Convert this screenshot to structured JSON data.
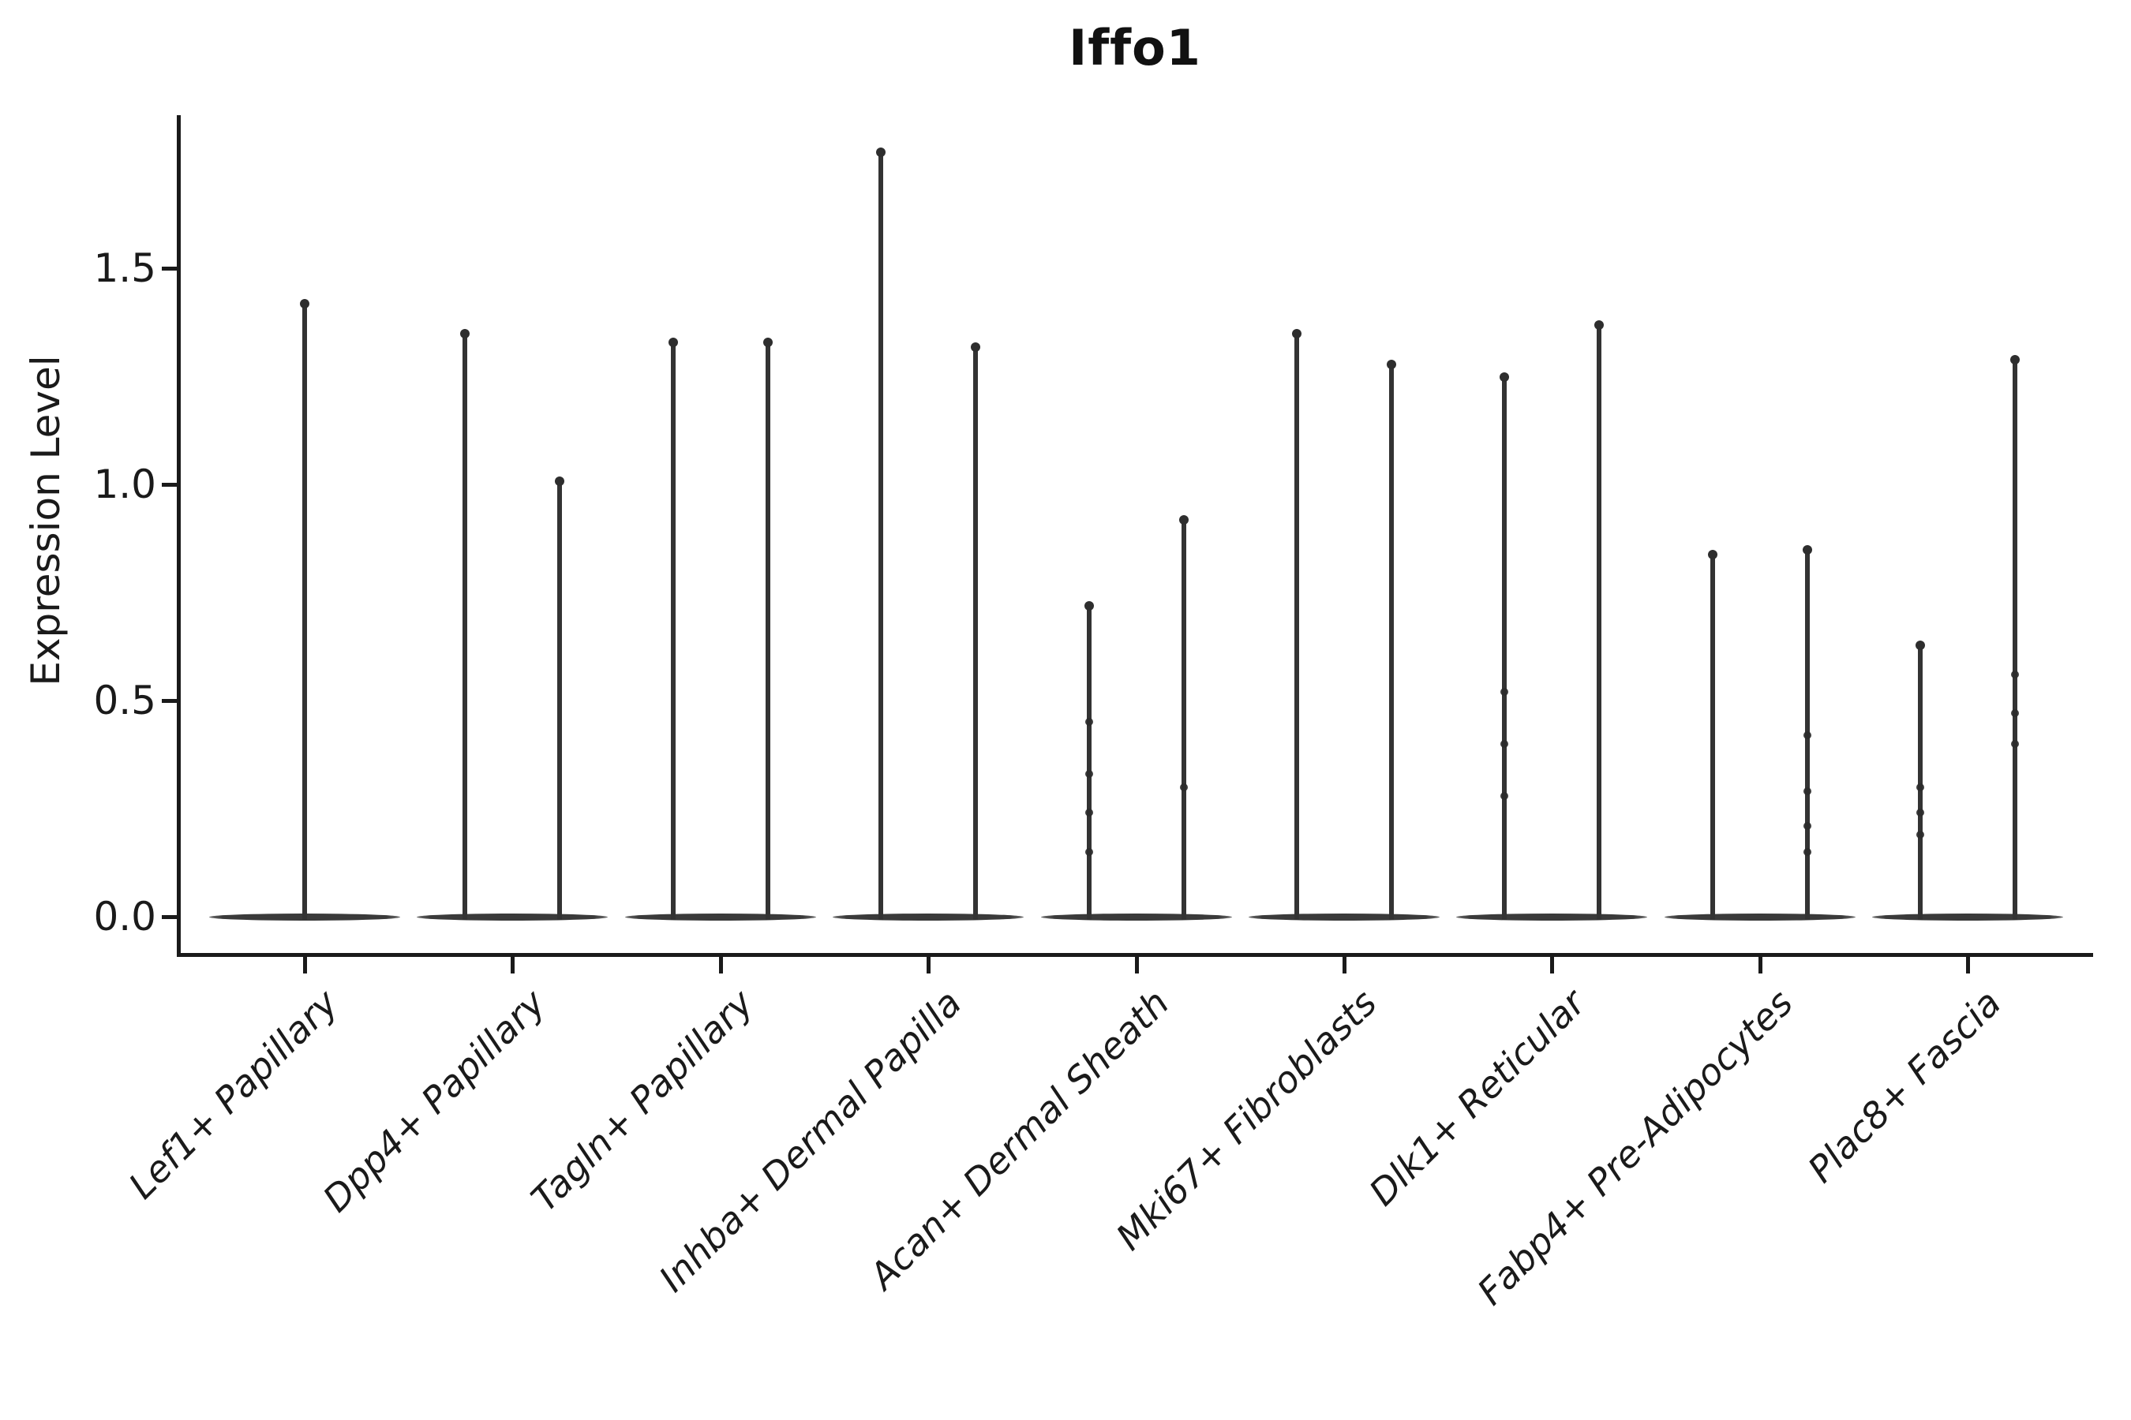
{
  "chart_data": {
    "type": "violin",
    "title": "Iffo1",
    "ylabel": "Expression Level",
    "xlabel": "",
    "ytick_labels": [
      "1.5",
      "1.0",
      "0.5",
      "0.0"
    ],
    "yticks": [
      1.5,
      1.0,
      0.5,
      0.0
    ],
    "ylim": [
      -0.09,
      1.85
    ],
    "grid": false,
    "legend": null,
    "categories": [
      "Lef1+ Papillary",
      "Dpp4+ Papillary",
      "Tagln+ Papillary",
      "Inhba+ Dermal Papilla",
      "Acan+ Dermal Sheath",
      "Mki67+ Fibroblasts",
      "Dlk1+ Reticular",
      "Fabp4+ Pre-Adipocytes",
      "Plac8+ Fascia"
    ],
    "series": [
      {
        "category": "Lef1+ Papillary",
        "spikes": [
          {
            "side": "center",
            "max": 1.42,
            "jitter_points": []
          }
        ]
      },
      {
        "category": "Dpp4+ Papillary",
        "spikes": [
          {
            "side": "left",
            "max": 1.35,
            "jitter_points": []
          },
          {
            "side": "right",
            "max": 1.01,
            "jitter_points": []
          }
        ]
      },
      {
        "category": "Tagln+ Papillary",
        "spikes": [
          {
            "side": "left",
            "max": 1.33,
            "jitter_points": []
          },
          {
            "side": "right",
            "max": 1.33,
            "jitter_points": []
          }
        ]
      },
      {
        "category": "Inhba+ Dermal Papilla",
        "spikes": [
          {
            "side": "left",
            "max": 1.77,
            "jitter_points": []
          },
          {
            "side": "right",
            "max": 1.32,
            "jitter_points": []
          }
        ]
      },
      {
        "category": "Acan+ Dermal Sheath",
        "spikes": [
          {
            "side": "left",
            "max": 0.72,
            "jitter_points": [
              0.45,
              0.33,
              0.24,
              0.15
            ]
          },
          {
            "side": "right",
            "max": 0.92,
            "jitter_points": [
              0.3
            ]
          }
        ]
      },
      {
        "category": "Mki67+ Fibroblasts",
        "spikes": [
          {
            "side": "left",
            "max": 1.35,
            "jitter_points": []
          },
          {
            "side": "right",
            "max": 1.28,
            "jitter_points": []
          }
        ]
      },
      {
        "category": "Dlk1+ Reticular",
        "spikes": [
          {
            "side": "left",
            "max": 1.25,
            "jitter_points": [
              0.52,
              0.4,
              0.28
            ]
          },
          {
            "side": "right",
            "max": 1.37,
            "jitter_points": []
          }
        ]
      },
      {
        "category": "Fabp4+ Pre-Adipocytes",
        "spikes": [
          {
            "side": "left",
            "max": 0.84,
            "jitter_points": []
          },
          {
            "side": "right",
            "max": 0.85,
            "jitter_points": [
              0.42,
              0.29,
              0.21,
              0.15
            ]
          }
        ]
      },
      {
        "category": "Plac8+ Fascia",
        "spikes": [
          {
            "side": "left",
            "max": 0.63,
            "jitter_points": [
              0.3,
              0.24,
              0.19
            ]
          },
          {
            "side": "right",
            "max": 1.29,
            "jitter_points": [
              0.56,
              0.47,
              0.4
            ]
          }
        ]
      }
    ],
    "colors": {
      "violin_fill": "#3a3a3a",
      "spike": "#333333",
      "text": "#1a1a1a",
      "background": "#ffffff"
    }
  }
}
